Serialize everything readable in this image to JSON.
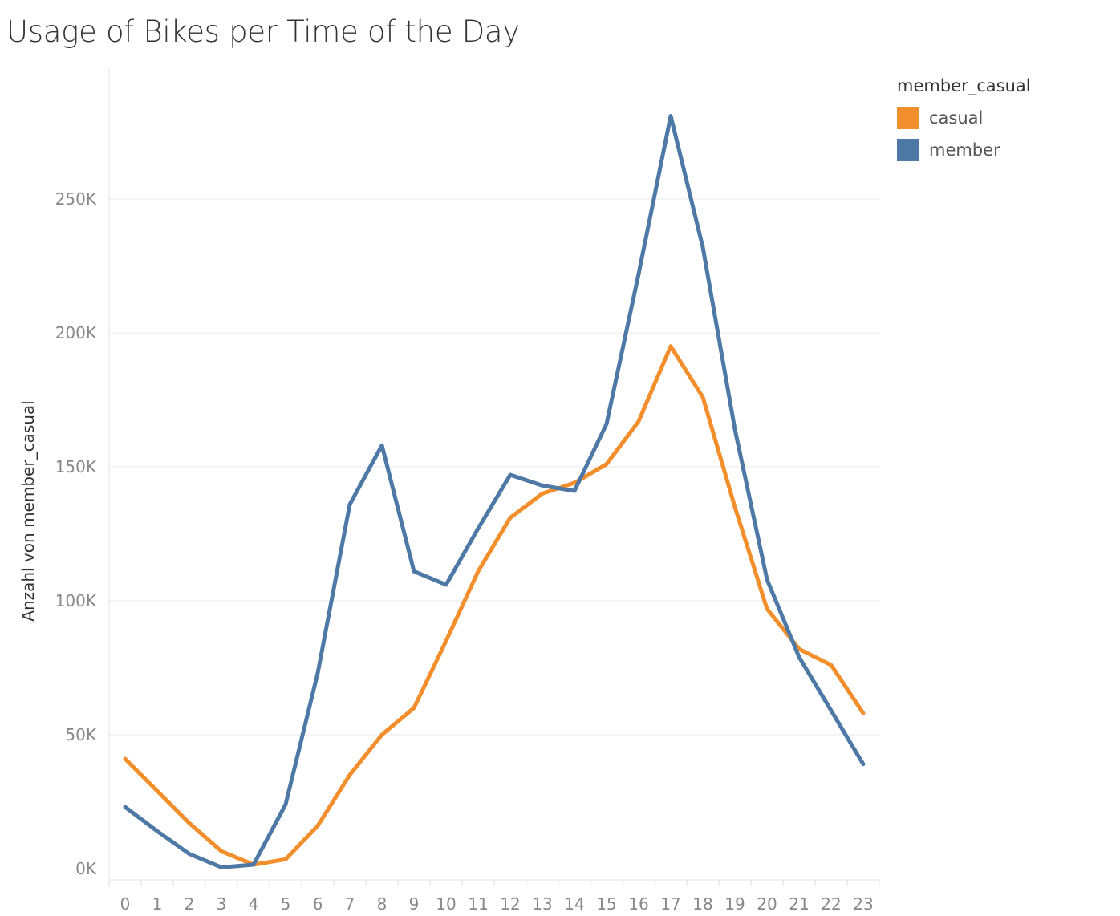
{
  "chart_data": {
    "type": "line",
    "title": "Usage of Bikes per Time of the Day",
    "xlabel": "",
    "ylabel": "Anzahl von member_casual",
    "categories": [
      "0",
      "1",
      "2",
      "3",
      "4",
      "5",
      "6",
      "7",
      "8",
      "9",
      "10",
      "11",
      "12",
      "13",
      "14",
      "15",
      "16",
      "17",
      "18",
      "19",
      "20",
      "21",
      "22",
      "23"
    ],
    "ylim": [
      0,
      290000
    ],
    "yticks": [
      0,
      50000,
      100000,
      150000,
      200000,
      250000
    ],
    "ytick_labels": [
      "0K",
      "50K",
      "100K",
      "150K",
      "200K",
      "250K"
    ],
    "grid": true,
    "legend_title": "member_casual",
    "legend_position": "top-right",
    "series": [
      {
        "name": "casual",
        "color": "#F28E2B",
        "values": [
          41000,
          29000,
          17000,
          6500,
          1500,
          3500,
          16000,
          35000,
          50000,
          60000,
          85000,
          111000,
          131000,
          140000,
          144000,
          151000,
          167000,
          195000,
          176000,
          135000,
          97000,
          82000,
          76000,
          58000
        ]
      },
      {
        "name": "member",
        "color": "#4E79A7",
        "values": [
          23000,
          14000,
          5500,
          500,
          1500,
          24000,
          73000,
          136000,
          158000,
          111000,
          106000,
          127000,
          147000,
          143000,
          141000,
          166000,
          222000,
          281000,
          232000,
          164000,
          108000,
          79000,
          59000,
          39000
        ]
      }
    ]
  }
}
